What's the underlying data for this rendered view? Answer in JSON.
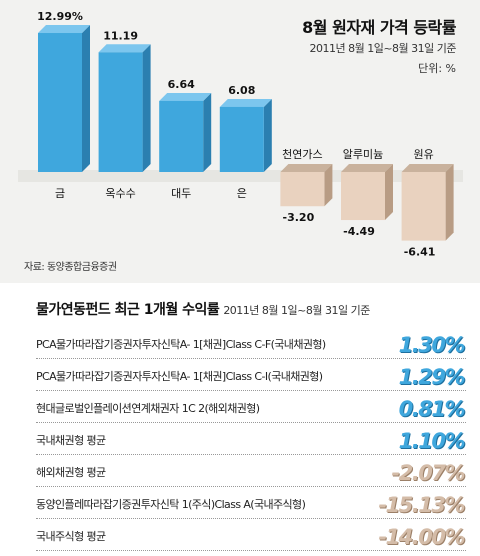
{
  "top_panel": {
    "title": "8월 원자재 가격 등락률",
    "period": "2011년 8월 1일~8월 31일 기준",
    "unit": "단위: %",
    "source": "자료: 동양종합금융증권"
  },
  "chart_data": {
    "type": "bar",
    "categories": [
      "금",
      "옥수수",
      "대두",
      "은",
      "천연가스",
      "알루미늄",
      "원유"
    ],
    "values": [
      12.99,
      11.19,
      6.64,
      6.08,
      -3.2,
      -4.49,
      -6.41
    ],
    "value_labels": [
      "12.99%",
      "11.19",
      "6.64",
      "6.08",
      "-3.20",
      "-4.49",
      "-6.41"
    ],
    "colors": {
      "positive": "#3fa7dd",
      "negative": "#e9d2bf"
    }
  },
  "bottom_panel": {
    "title": "물가연동펀드 최근 1개월 수익률",
    "period": "2011년 8월 1일~8월 31일 기준",
    "rows": [
      {
        "label": "PCA물가따라잡기증권자투자신탁A- 1[채권]Class C-F(국내채권형)",
        "value": "1.30%",
        "sign": "pos"
      },
      {
        "label": "PCA물가따라잡기증권자투자신탁A- 1[채권]Class C-I(국내채권형)",
        "value": "1.29%",
        "sign": "pos"
      },
      {
        "label": "현대글로벌인플레이션연계채권자 1C 2(해외채권형)",
        "value": "0.81%",
        "sign": "pos"
      },
      {
        "label": "국내채권형 평균",
        "value": "1.10%",
        "sign": "pos"
      },
      {
        "label": "해외채권형 평균",
        "value": "-2.07%",
        "sign": "neg"
      },
      {
        "label": "동양인플레따라잡기증권투자신탁 1(주식)Class A(국내주식형)",
        "value": "-15.13%",
        "sign": "neg"
      },
      {
        "label": "국내주식형 평균",
        "value": "-14.00%",
        "sign": "neg"
      }
    ]
  }
}
